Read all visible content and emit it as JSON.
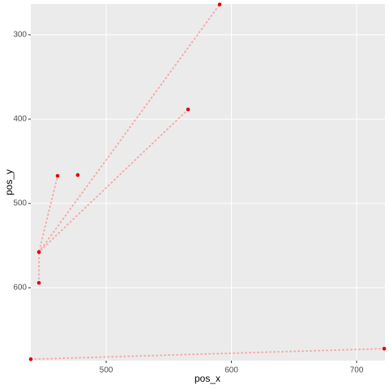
{
  "chart_data": {
    "type": "scatter",
    "xlabel": "pos_x",
    "ylabel": "pos_y",
    "xlim": [
      439.8,
      722.6
    ],
    "ylim": [
      263.5,
      686.5
    ],
    "y_reversed": true,
    "xticks": [
      500,
      600,
      700
    ],
    "yticks": [
      300,
      400,
      500,
      600
    ],
    "grid": true,
    "paths": [
      {
        "color": "#ff8080",
        "x": [
          722,
          439.8,
          null,
          446.3,
          446.3,
          461.2,
          null,
          565.4,
          446.3,
          590.6
        ],
        "y": [
          672.3,
          684.8,
          null,
          594.2,
          557.7,
          467.3,
          null,
          388.5,
          557.7,
          264
        ]
      }
    ],
    "series": [
      {
        "color": "#e00000",
        "x": [
          590.6,
          565.4,
          461.2,
          477.3,
          446.3,
          446.3,
          722,
          439.8
        ],
        "y": [
          264,
          388.5,
          467.3,
          466.3,
          557.7,
          594.2,
          672.3,
          684.8
        ]
      }
    ]
  }
}
